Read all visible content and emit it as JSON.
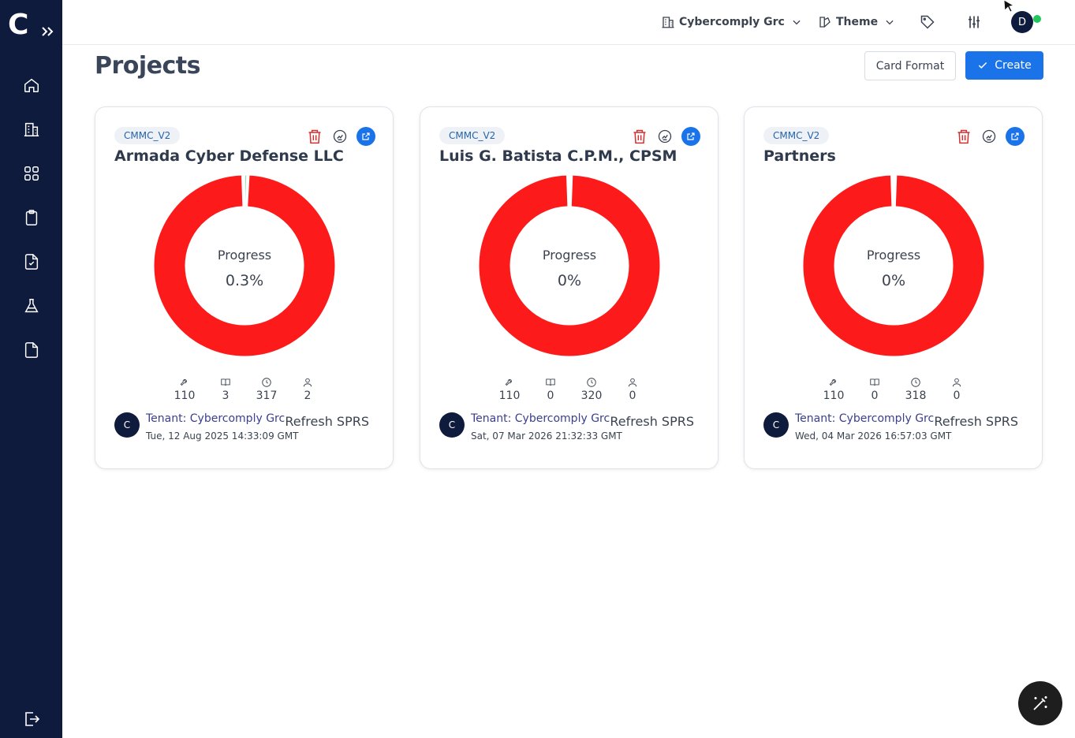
{
  "app": {
    "logo_letter": "C",
    "org_selector": "Cybercomply Grc",
    "theme_label": "Theme",
    "user_initial": "D",
    "user_status_color": "#22c55e"
  },
  "sidebar": {
    "items": [
      {
        "icon": "home-icon"
      },
      {
        "icon": "building-icon"
      },
      {
        "icon": "grid-icon"
      },
      {
        "icon": "clipboard-icon"
      },
      {
        "icon": "file-check-icon"
      },
      {
        "icon": "flask-icon"
      },
      {
        "icon": "document-icon"
      }
    ],
    "bottom_icon": "logout-icon"
  },
  "page": {
    "title": "Projects",
    "card_format_label": "Card Format",
    "create_label": "Create"
  },
  "colors": {
    "sidebar_bg": "#0f1b3d",
    "accent": "#1a73e8",
    "donut_remaining": "#fc1a1a",
    "donut_complete": "#22c55e",
    "delete": "#d32f2f"
  },
  "cards": [
    {
      "tag": "CMMC_V2",
      "title": "Armada Cyber Defense LLC",
      "progress_label": "Progress",
      "progress_text": "0.3%",
      "progress": 0.3,
      "stats": [
        {
          "icon": "wrench-icon",
          "value": "110"
        },
        {
          "icon": "book-icon",
          "value": "3"
        },
        {
          "icon": "clock-icon",
          "value": "317"
        },
        {
          "icon": "user-icon",
          "value": "2"
        }
      ],
      "tenant_initial": "C",
      "tenant": "Tenant: Cybercomply Grc",
      "date": "Tue, 12 Aug 2025 14:33:09 GMT",
      "refresh": "Refresh SPRS"
    },
    {
      "tag": "CMMC_V2",
      "title": "Luis G. Batista C.P.M., CPSM",
      "progress_label": "Progress",
      "progress_text": "0%",
      "progress": 0,
      "stats": [
        {
          "icon": "wrench-icon",
          "value": "110"
        },
        {
          "icon": "book-icon",
          "value": "0"
        },
        {
          "icon": "clock-icon",
          "value": "320"
        },
        {
          "icon": "user-icon",
          "value": "0"
        }
      ],
      "tenant_initial": "C",
      "tenant": "Tenant: Cybercomply Grc",
      "date": "Sat, 07 Mar 2026 21:32:33 GMT",
      "refresh": "Refresh SPRS"
    },
    {
      "tag": "CMMC_V2",
      "title": "Partners",
      "progress_label": "Progress",
      "progress_text": "0%",
      "progress": 0,
      "stats": [
        {
          "icon": "wrench-icon",
          "value": "110"
        },
        {
          "icon": "book-icon",
          "value": "0"
        },
        {
          "icon": "clock-icon",
          "value": "318"
        },
        {
          "icon": "user-icon",
          "value": "0"
        }
      ],
      "tenant_initial": "C",
      "tenant": "Tenant: Cybercomply Grc",
      "date": "Wed, 04 Mar 2026 16:57:03 GMT",
      "refresh": "Refresh SPRS"
    }
  ]
}
